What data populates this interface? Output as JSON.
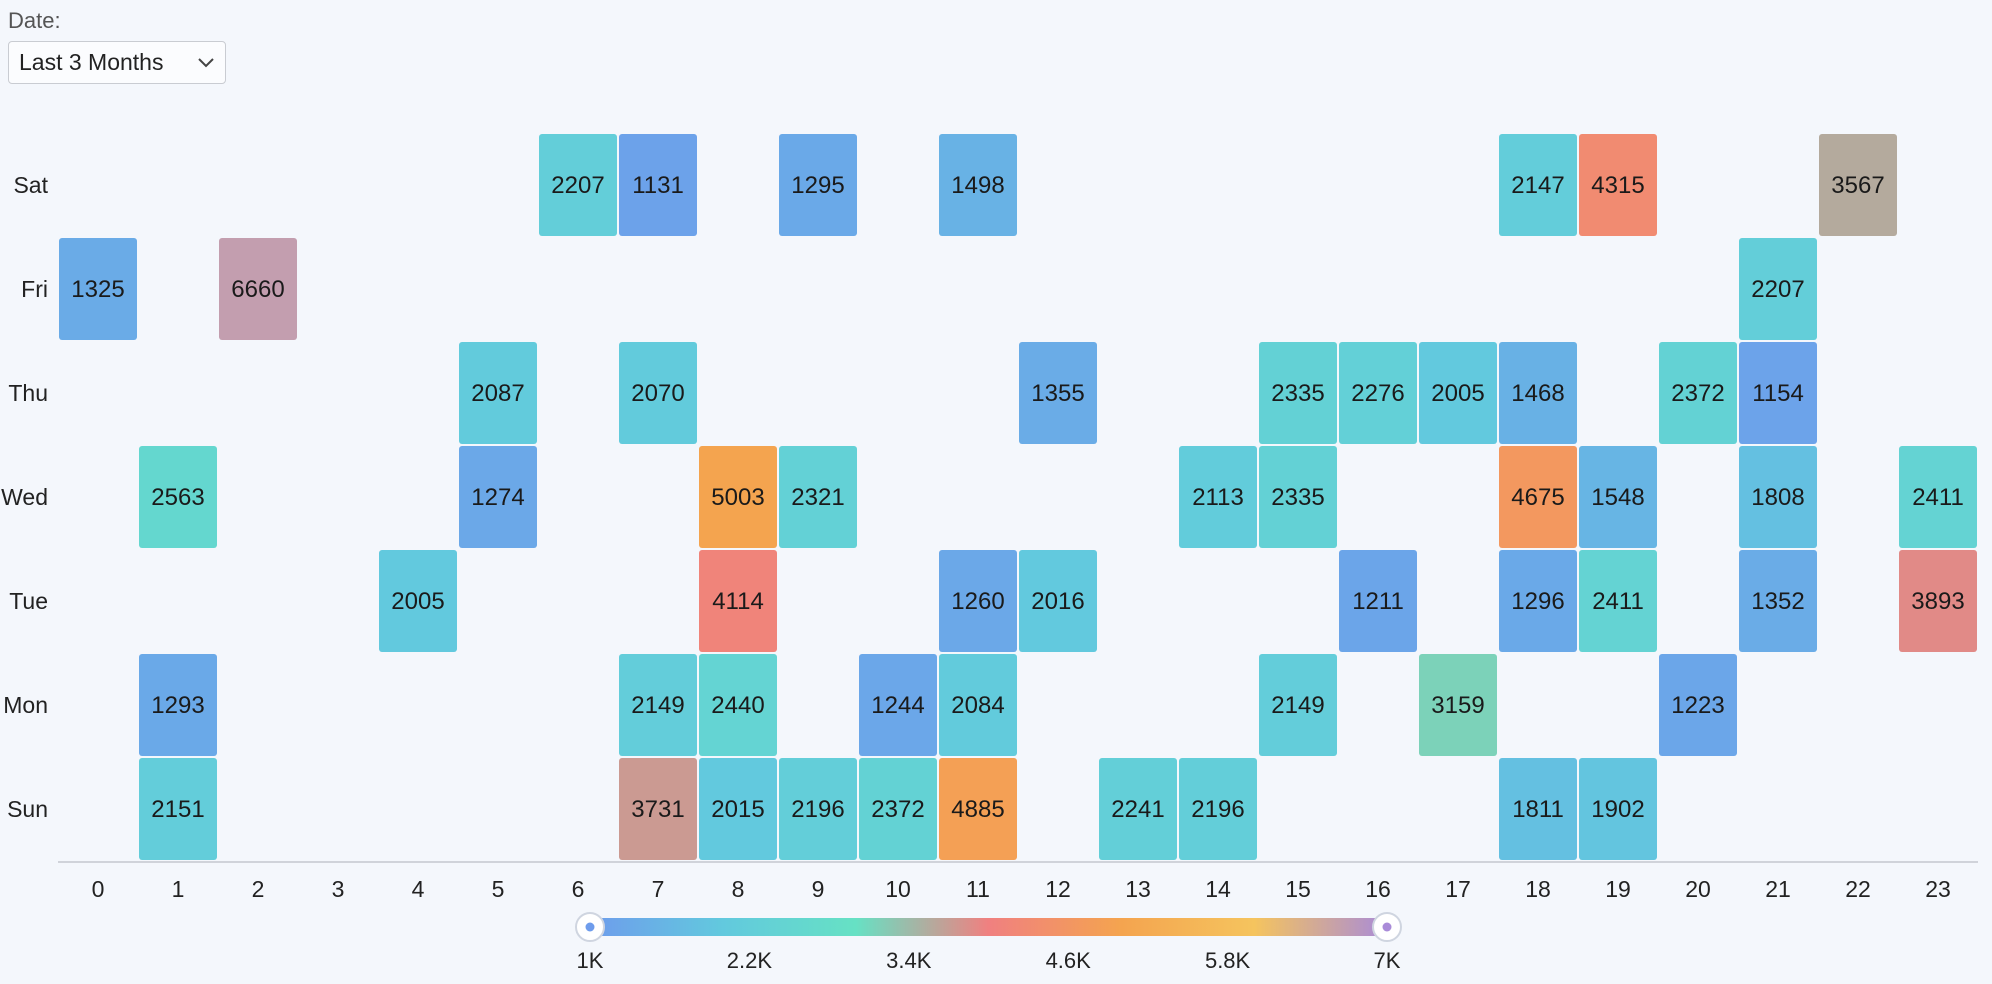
{
  "filter": {
    "label": "Date:",
    "selected": "Last 3 Months",
    "dropdown_icon": "chevron-down-icon"
  },
  "chart_data": {
    "type": "heatmap",
    "title": "",
    "xlabel": "",
    "ylabel": "",
    "x_categories": [
      "0",
      "1",
      "2",
      "3",
      "4",
      "5",
      "6",
      "7",
      "8",
      "9",
      "10",
      "11",
      "12",
      "13",
      "14",
      "15",
      "16",
      "17",
      "18",
      "19",
      "20",
      "21",
      "22",
      "23"
    ],
    "y_categories": [
      "Sat",
      "Fri",
      "Thu",
      "Wed",
      "Tue",
      "Mon",
      "Sun"
    ],
    "cells": [
      {
        "x": 6,
        "y": "Sat",
        "value": 2207
      },
      {
        "x": 7,
        "y": "Sat",
        "value": 1131
      },
      {
        "x": 9,
        "y": "Sat",
        "value": 1295
      },
      {
        "x": 11,
        "y": "Sat",
        "value": 1498
      },
      {
        "x": 18,
        "y": "Sat",
        "value": 2147
      },
      {
        "x": 19,
        "y": "Sat",
        "value": 4315
      },
      {
        "x": 22,
        "y": "Sat",
        "value": 3567
      },
      {
        "x": 0,
        "y": "Fri",
        "value": 1325
      },
      {
        "x": 2,
        "y": "Fri",
        "value": 6660
      },
      {
        "x": 21,
        "y": "Fri",
        "value": 2207
      },
      {
        "x": 5,
        "y": "Thu",
        "value": 2087
      },
      {
        "x": 7,
        "y": "Thu",
        "value": 2070
      },
      {
        "x": 12,
        "y": "Thu",
        "value": 1355
      },
      {
        "x": 15,
        "y": "Thu",
        "value": 2335
      },
      {
        "x": 16,
        "y": "Thu",
        "value": 2276
      },
      {
        "x": 17,
        "y": "Thu",
        "value": 2005
      },
      {
        "x": 18,
        "y": "Thu",
        "value": 1468
      },
      {
        "x": 20,
        "y": "Thu",
        "value": 2372
      },
      {
        "x": 21,
        "y": "Thu",
        "value": 1154
      },
      {
        "x": 1,
        "y": "Wed",
        "value": 2563
      },
      {
        "x": 5,
        "y": "Wed",
        "value": 1274
      },
      {
        "x": 8,
        "y": "Wed",
        "value": 5003
      },
      {
        "x": 9,
        "y": "Wed",
        "value": 2321
      },
      {
        "x": 14,
        "y": "Wed",
        "value": 2113
      },
      {
        "x": 15,
        "y": "Wed",
        "value": 2335
      },
      {
        "x": 18,
        "y": "Wed",
        "value": 4675
      },
      {
        "x": 19,
        "y": "Wed",
        "value": 1548
      },
      {
        "x": 21,
        "y": "Wed",
        "value": 1808
      },
      {
        "x": 23,
        "y": "Wed",
        "value": 2411
      },
      {
        "x": 4,
        "y": "Tue",
        "value": 2005
      },
      {
        "x": 8,
        "y": "Tue",
        "value": 4114
      },
      {
        "x": 11,
        "y": "Tue",
        "value": 1260
      },
      {
        "x": 12,
        "y": "Tue",
        "value": 2016
      },
      {
        "x": 16,
        "y": "Tue",
        "value": 1211
      },
      {
        "x": 18,
        "y": "Tue",
        "value": 1296
      },
      {
        "x": 19,
        "y": "Tue",
        "value": 2411
      },
      {
        "x": 21,
        "y": "Tue",
        "value": 1352
      },
      {
        "x": 23,
        "y": "Tue",
        "value": 3893
      },
      {
        "x": 1,
        "y": "Mon",
        "value": 1293
      },
      {
        "x": 7,
        "y": "Mon",
        "value": 2149
      },
      {
        "x": 8,
        "y": "Mon",
        "value": 2440
      },
      {
        "x": 10,
        "y": "Mon",
        "value": 1244
      },
      {
        "x": 11,
        "y": "Mon",
        "value": 2084
      },
      {
        "x": 15,
        "y": "Mon",
        "value": 2149
      },
      {
        "x": 17,
        "y": "Mon",
        "value": 3159
      },
      {
        "x": 20,
        "y": "Mon",
        "value": 1223
      },
      {
        "x": 1,
        "y": "Sun",
        "value": 2151
      },
      {
        "x": 7,
        "y": "Sun",
        "value": 3731
      },
      {
        "x": 8,
        "y": "Sun",
        "value": 2015
      },
      {
        "x": 9,
        "y": "Sun",
        "value": 2196
      },
      {
        "x": 10,
        "y": "Sun",
        "value": 2372
      },
      {
        "x": 11,
        "y": "Sun",
        "value": 4885
      },
      {
        "x": 13,
        "y": "Sun",
        "value": 2241
      },
      {
        "x": 14,
        "y": "Sun",
        "value": 2196
      },
      {
        "x": 18,
        "y": "Sun",
        "value": 1811
      },
      {
        "x": 19,
        "y": "Sun",
        "value": 1902
      }
    ],
    "color_scale": {
      "min": 1000,
      "max": 7000,
      "range_selected": [
        1000,
        7000
      ],
      "tick_values": [
        1000,
        2200,
        3400,
        4600,
        5800,
        7000
      ],
      "tick_labels": [
        "1K",
        "2.2K",
        "3.4K",
        "4.6K",
        "5.8K",
        "7K"
      ],
      "stops": [
        "#6e9cec",
        "#62c9de",
        "#66e1c4",
        "#f08080",
        "#f4a44f",
        "#f5c45e",
        "#a98bd8"
      ]
    },
    "legend": "bottom"
  }
}
